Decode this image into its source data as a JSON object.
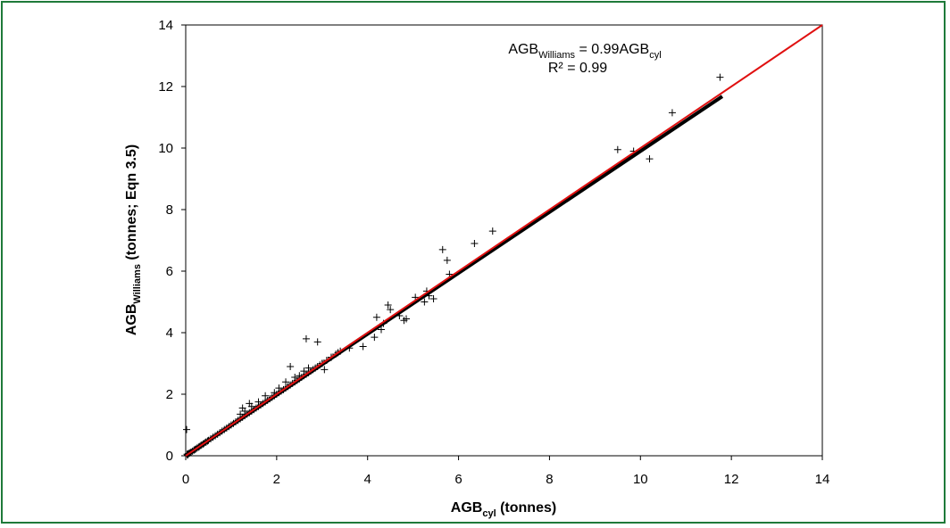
{
  "colors": {
    "border": "#1f7a3a",
    "one_to_one_line": "#e01010",
    "regression_line": "#000000",
    "points": "#000000"
  },
  "chart_data": {
    "type": "scatter",
    "xlim": [
      0,
      14
    ],
    "ylim": [
      0,
      14
    ],
    "x_ticks": [
      "0",
      "2",
      "4",
      "6",
      "8",
      "10",
      "12",
      "14"
    ],
    "y_ticks": [
      "0",
      "2",
      "4",
      "6",
      "8",
      "10",
      "12",
      "14"
    ],
    "xlabel": {
      "base": "AGB",
      "sub": "cyl",
      "tail": " (tonnes)"
    },
    "ylabel": {
      "base": "AGB",
      "sub": "Williams",
      "tail": " (tonnes; Eqn 3.5)"
    },
    "equation": {
      "lhs": "AGB",
      "lhs_sub": "Williams",
      "mid": " = 0.99AGB",
      "rhs_sub": "cyl"
    },
    "r_squared": "R² = 0.99",
    "grid": false,
    "marker": "+",
    "series": [
      {
        "type": "scatter",
        "x": [
          0.0,
          0.05,
          0.08,
          0.1,
          0.12,
          0.15,
          0.18,
          0.2,
          0.22,
          0.25,
          0.28,
          0.3,
          0.33,
          0.35,
          0.38,
          0.4,
          0.43,
          0.45,
          0.48,
          0.5,
          0.55,
          0.6,
          0.65,
          0.7,
          0.75,
          0.8,
          0.85,
          0.9,
          0.95,
          1.0,
          1.05,
          1.1,
          1.15,
          1.2,
          1.25,
          1.3,
          1.35,
          1.4,
          1.45,
          1.5,
          1.55,
          1.6,
          1.65,
          1.7,
          1.75,
          1.8,
          1.85,
          1.9,
          1.95,
          2.0,
          2.05,
          2.1,
          2.15,
          2.2,
          2.25,
          2.3,
          2.35,
          2.4,
          2.45,
          2.5,
          2.55,
          2.6,
          2.65,
          2.7,
          2.75,
          2.8,
          2.85,
          2.9,
          2.95,
          3.0,
          3.1,
          3.2,
          3.3,
          3.4,
          1.2,
          1.3,
          1.45,
          1.6,
          1.75,
          1.95,
          2.05,
          2.2,
          2.4,
          2.5,
          2.6,
          2.7,
          1.25,
          1.4,
          2.65,
          2.3,
          2.9,
          3.0,
          3.05,
          3.2,
          3.35,
          3.6,
          3.9,
          4.15,
          4.2,
          4.3,
          4.35,
          4.45,
          4.5,
          4.7,
          4.8,
          4.85,
          5.05,
          5.25,
          5.3,
          5.35,
          5.45,
          5.65,
          5.75,
          5.8,
          6.35,
          6.75,
          9.5,
          9.85,
          10.2,
          10.7,
          11.75,
          0.02,
          0.03,
          0.04,
          0.06
        ],
        "y": [
          0.0,
          0.05,
          0.08,
          0.1,
          0.12,
          0.15,
          0.18,
          0.2,
          0.22,
          0.25,
          0.28,
          0.3,
          0.33,
          0.35,
          0.38,
          0.4,
          0.43,
          0.45,
          0.48,
          0.5,
          0.55,
          0.6,
          0.65,
          0.7,
          0.75,
          0.8,
          0.85,
          0.9,
          0.95,
          1.0,
          1.05,
          1.1,
          1.15,
          1.2,
          1.25,
          1.3,
          1.35,
          1.4,
          1.45,
          1.5,
          1.55,
          1.6,
          1.65,
          1.7,
          1.75,
          1.8,
          1.85,
          1.9,
          1.95,
          2.0,
          2.05,
          2.1,
          2.15,
          2.2,
          2.25,
          2.3,
          2.35,
          2.4,
          2.45,
          2.5,
          2.55,
          2.6,
          2.65,
          2.7,
          2.75,
          2.8,
          2.85,
          2.9,
          2.95,
          3.0,
          3.1,
          3.2,
          3.3,
          3.4,
          1.35,
          1.45,
          1.6,
          1.75,
          1.95,
          2.05,
          2.2,
          2.4,
          2.55,
          2.6,
          2.75,
          2.85,
          1.55,
          1.7,
          3.8,
          2.9,
          3.7,
          3.0,
          2.8,
          3.2,
          3.35,
          3.5,
          3.55,
          3.85,
          4.5,
          4.1,
          4.3,
          4.9,
          4.75,
          4.55,
          4.4,
          4.45,
          5.15,
          5.0,
          5.35,
          5.2,
          5.1,
          6.7,
          6.35,
          5.9,
          6.9,
          7.3,
          9.95,
          9.9,
          9.65,
          11.15,
          12.3,
          0.85,
          0.05,
          0.02,
          0.07
        ]
      },
      {
        "type": "line",
        "name": "regression",
        "x": [
          0,
          11.8
        ],
        "y": [
          0,
          11.68
        ]
      },
      {
        "type": "line",
        "name": "one-to-one",
        "x": [
          0,
          14
        ],
        "y": [
          0,
          14
        ]
      }
    ]
  }
}
